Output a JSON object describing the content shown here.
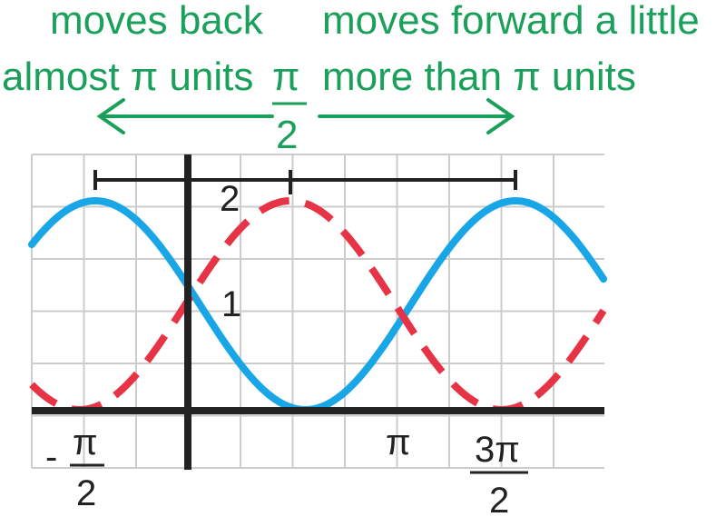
{
  "annotations": {
    "left_line1": "moves back",
    "left_line2": "almost π units",
    "right_line1": "moves forward a little",
    "right_line2": "more than π units",
    "center_num": "π",
    "center_den": "2"
  },
  "labels": {
    "y_two": "2",
    "y_one": "1",
    "x_neg_minus": "-",
    "x_neg_num": "π",
    "x_neg_den": "2",
    "x_pi": "π",
    "x_3pi_num": "3π",
    "x_3pi_den": "2"
  },
  "colors": {
    "green": "#1aa05a",
    "blue_curve": "#19a6e6",
    "red_dashed": "#e63345",
    "axis": "#222222",
    "grid": "#cccccc"
  },
  "curves": {
    "blue_solid": {
      "style": "solid",
      "note_y_range": [
        0,
        2
      ]
    },
    "red_dashed": {
      "style": "dashed",
      "note_y_range": [
        0,
        2
      ]
    }
  }
}
